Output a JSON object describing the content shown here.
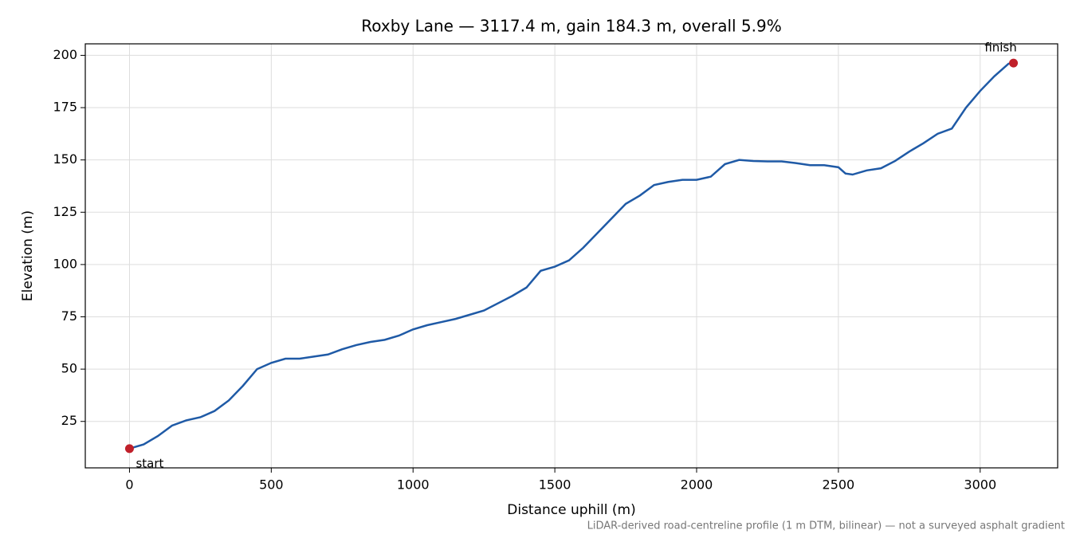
{
  "chart_data": {
    "type": "line",
    "title": "Roxby Lane — 3117.4 m, gain 184.3 m, overall 5.9%",
    "xlabel": "Distance uphill (m)",
    "ylabel": "Elevation (m)",
    "footnote": "LiDAR-derived road-centreline profile (1 m DTM, bilinear) — not a surveyed asphalt gradient",
    "xlim": [
      -155.87,
      3273.27
    ],
    "ylim": [
      2.8,
      205.5
    ],
    "xticks": [
      0,
      500,
      1000,
      1500,
      2000,
      2500,
      3000
    ],
    "yticks": [
      25,
      50,
      75,
      100,
      125,
      150,
      175,
      200
    ],
    "grid": true,
    "series": [
      {
        "color": "#1f5aa6",
        "x": [
          0,
          50,
          100,
          150,
          200,
          250,
          300,
          350,
          400,
          450,
          500,
          550,
          600,
          650,
          700,
          750,
          800,
          850,
          900,
          950,
          1000,
          1050,
          1100,
          1150,
          1200,
          1250,
          1300,
          1350,
          1400,
          1450,
          1500,
          1550,
          1600,
          1650,
          1700,
          1750,
          1800,
          1850,
          1900,
          1950,
          2000,
          2050,
          2100,
          2150,
          2200,
          2250,
          2300,
          2350,
          2400,
          2450,
          2500,
          2525,
          2550,
          2600,
          2650,
          2700,
          2750,
          2800,
          2850,
          2900,
          2950,
          3000,
          3050,
          3100,
          3117.4
        ],
        "values": [
          12,
          14,
          18,
          23,
          25.5,
          27,
          30,
          35,
          42,
          50,
          53,
          55,
          55,
          56,
          57,
          59.5,
          61.5,
          63,
          64,
          66,
          69,
          71,
          72.5,
          74,
          76,
          78,
          81.5,
          85,
          89,
          97,
          99,
          102,
          108,
          115,
          122,
          129,
          133,
          138,
          139.5,
          140.5,
          140.5,
          142,
          148,
          150,
          149.5,
          149.3,
          149.3,
          148.5,
          147.5,
          147.5,
          146.5,
          143.5,
          143,
          145,
          146,
          149.5,
          154,
          158,
          162.5,
          165,
          175,
          183,
          190,
          196,
          196.3
        ]
      }
    ],
    "endpoints": {
      "color": "#c0202a",
      "labels": [
        "start",
        "finish"
      ],
      "x": [
        0,
        3117.4
      ],
      "y": [
        12,
        196.3
      ]
    }
  }
}
